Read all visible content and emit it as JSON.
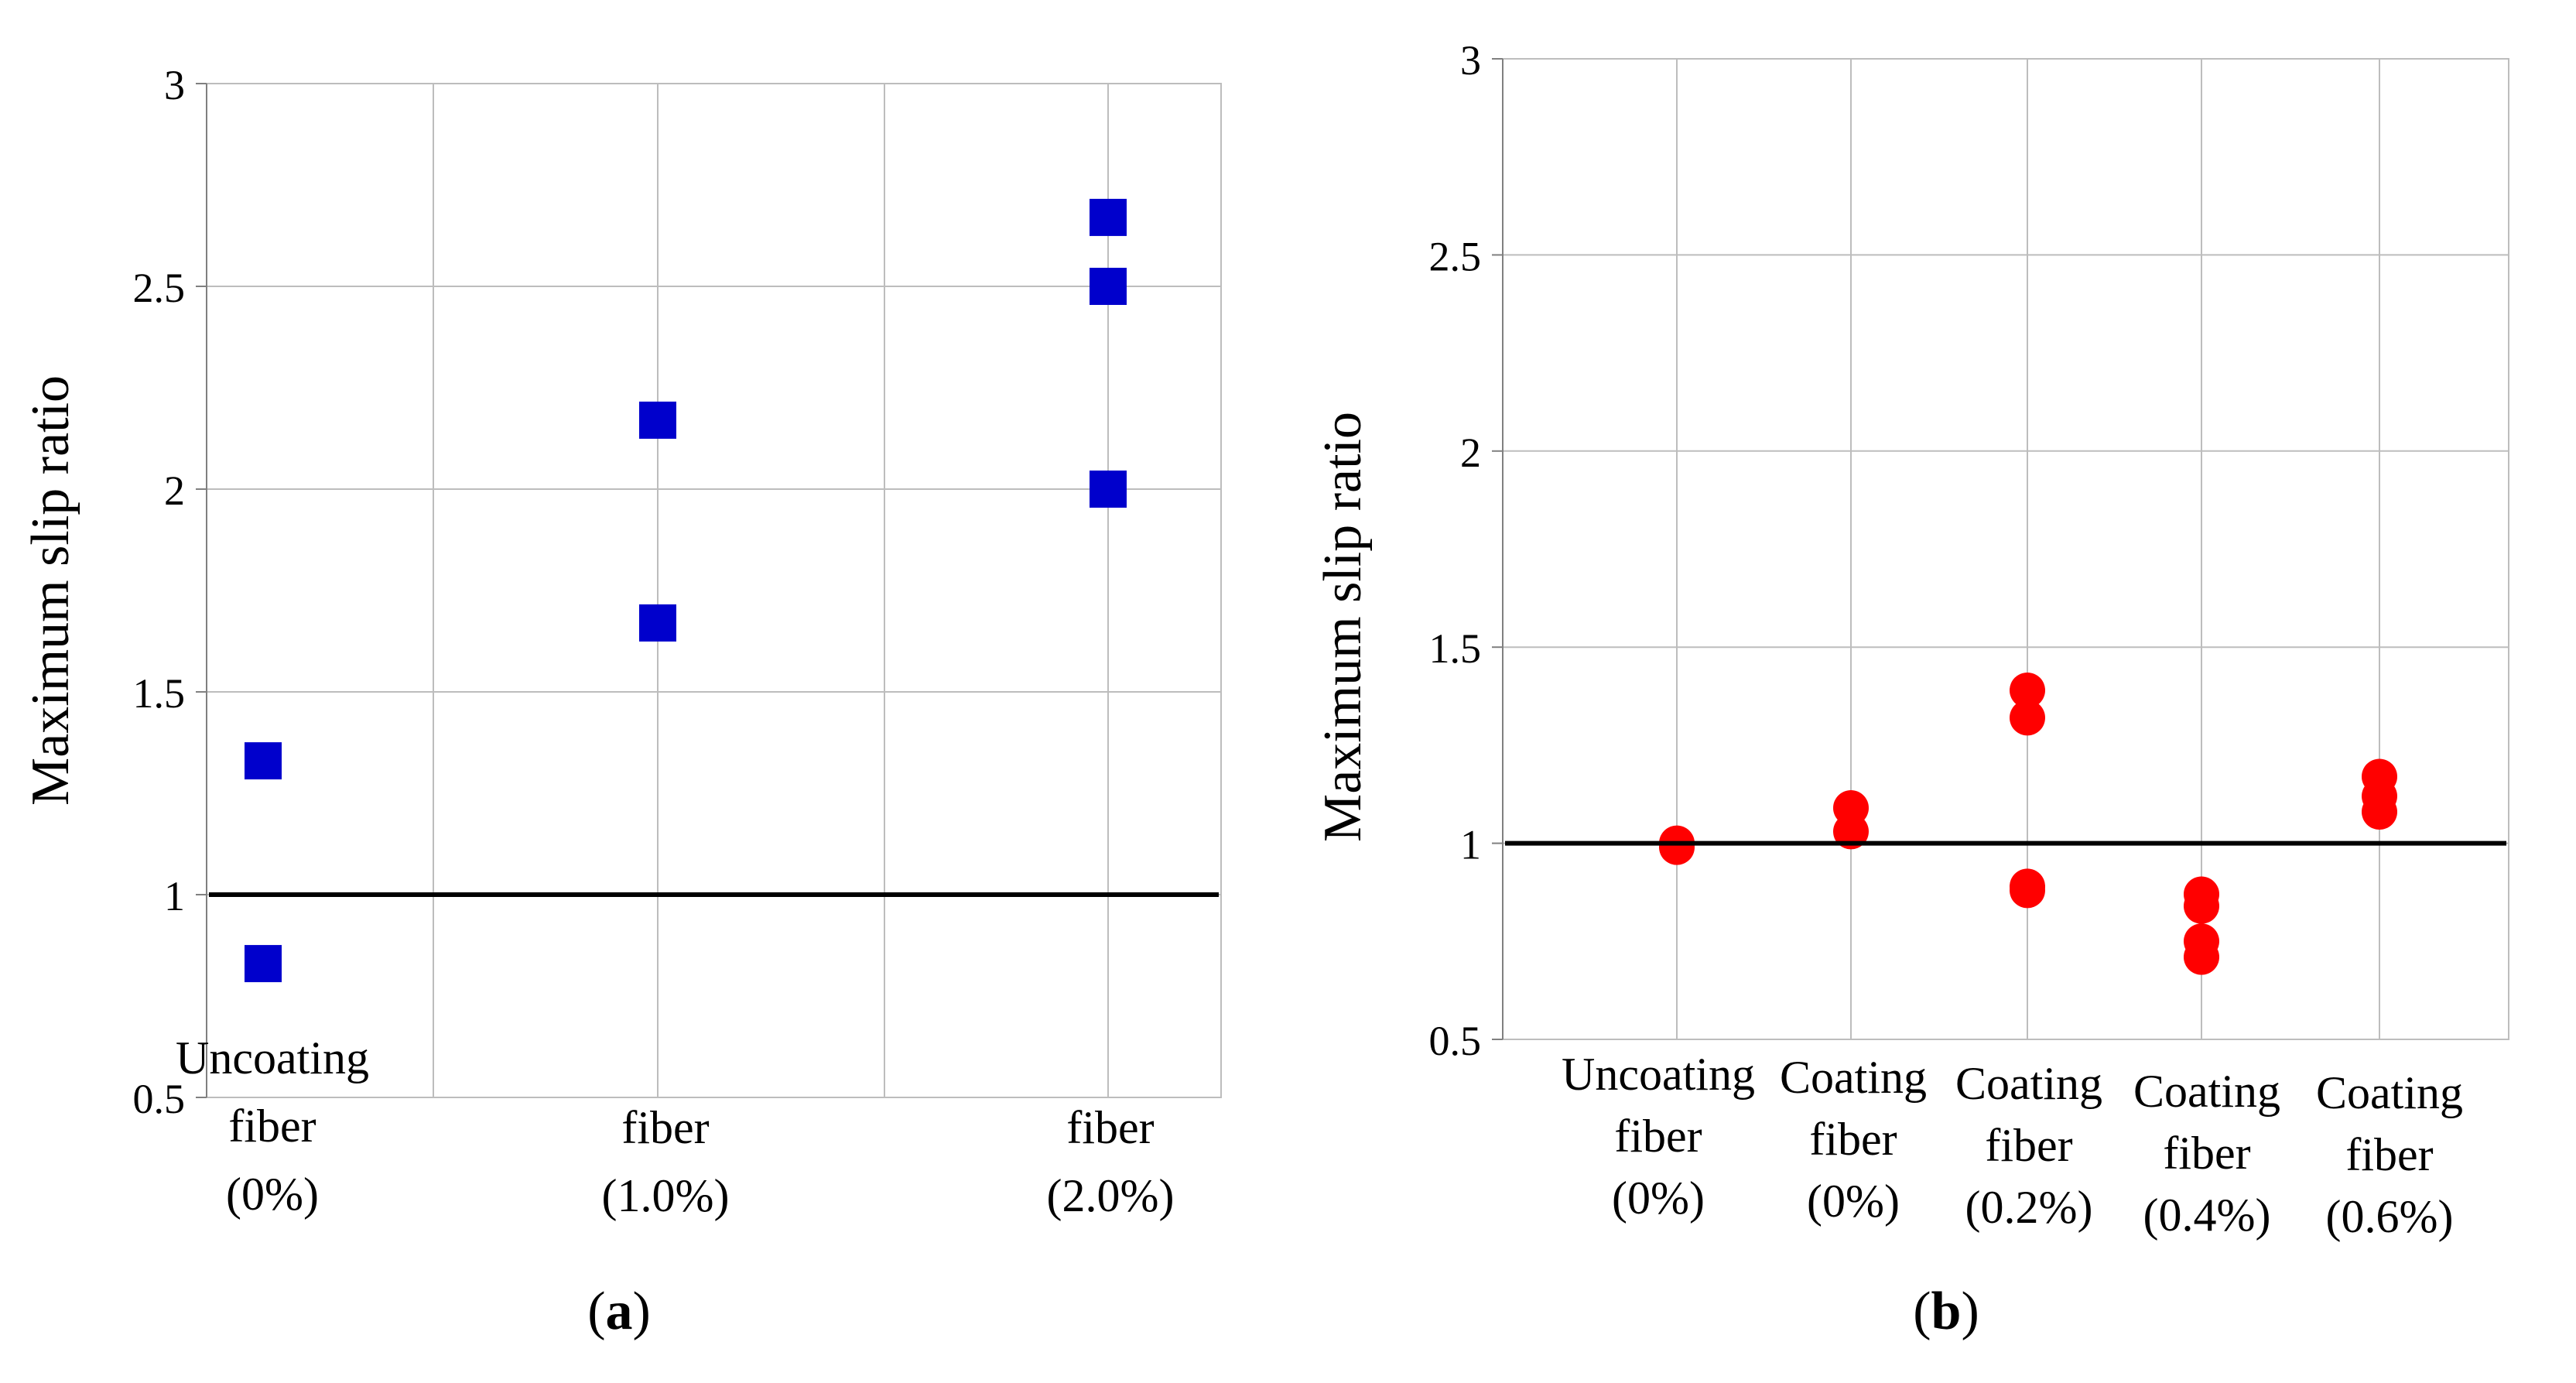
{
  "colors": {
    "series_a": "#0000cc",
    "series_b": "#ff0000",
    "grid": "#bdbdbd",
    "reference_line": "#000000"
  },
  "chart_data": [
    {
      "panel_label": "a",
      "type": "scatter",
      "marker": "square",
      "ylabel": "Maximum slip ratio",
      "ylim": [
        0.5,
        3
      ],
      "yticks": [
        "0.5",
        "1",
        "1.5",
        "2",
        "2.5",
        "3"
      ],
      "reference_line": 1,
      "grid": true,
      "categories": [
        {
          "lines": [
            "Uncoating",
            "fiber",
            "(0%)"
          ],
          "values": [
            1.33,
            0.83
          ]
        },
        {
          "lines": [
            "fiber",
            "(1.0%)"
          ],
          "values": [
            2.17,
            1.67
          ]
        },
        {
          "lines": [
            "fiber",
            "(2.0%)"
          ],
          "values": [
            2.67,
            2.5,
            2.0
          ]
        }
      ]
    },
    {
      "panel_label": "b",
      "type": "scatter",
      "marker": "circle",
      "ylabel": "Maximum slip ratio",
      "ylim": [
        0.5,
        3
      ],
      "yticks": [
        "0.5",
        "1",
        "1.5",
        "2",
        "2.5",
        "3"
      ],
      "reference_line": 1,
      "grid": true,
      "categories": [
        {
          "lines": [
            "Uncoating",
            "fiber",
            "(0%)"
          ],
          "values": [
            1.0,
            0.99
          ]
        },
        {
          "lines": [
            "Coating",
            "fiber",
            "(0%)"
          ],
          "values": [
            1.09,
            1.03
          ]
        },
        {
          "lines": [
            "Coating",
            "fiber",
            "(0.2%)"
          ],
          "values": [
            1.39,
            1.32,
            0.89,
            0.88
          ]
        },
        {
          "lines": [
            "Coating",
            "fiber",
            "(0.4%)"
          ],
          "values": [
            0.87,
            0.84,
            0.75,
            0.71
          ]
        },
        {
          "lines": [
            "Coating",
            "fiber",
            "(0.6%)"
          ],
          "values": [
            1.17,
            1.12,
            1.08
          ]
        }
      ]
    }
  ]
}
